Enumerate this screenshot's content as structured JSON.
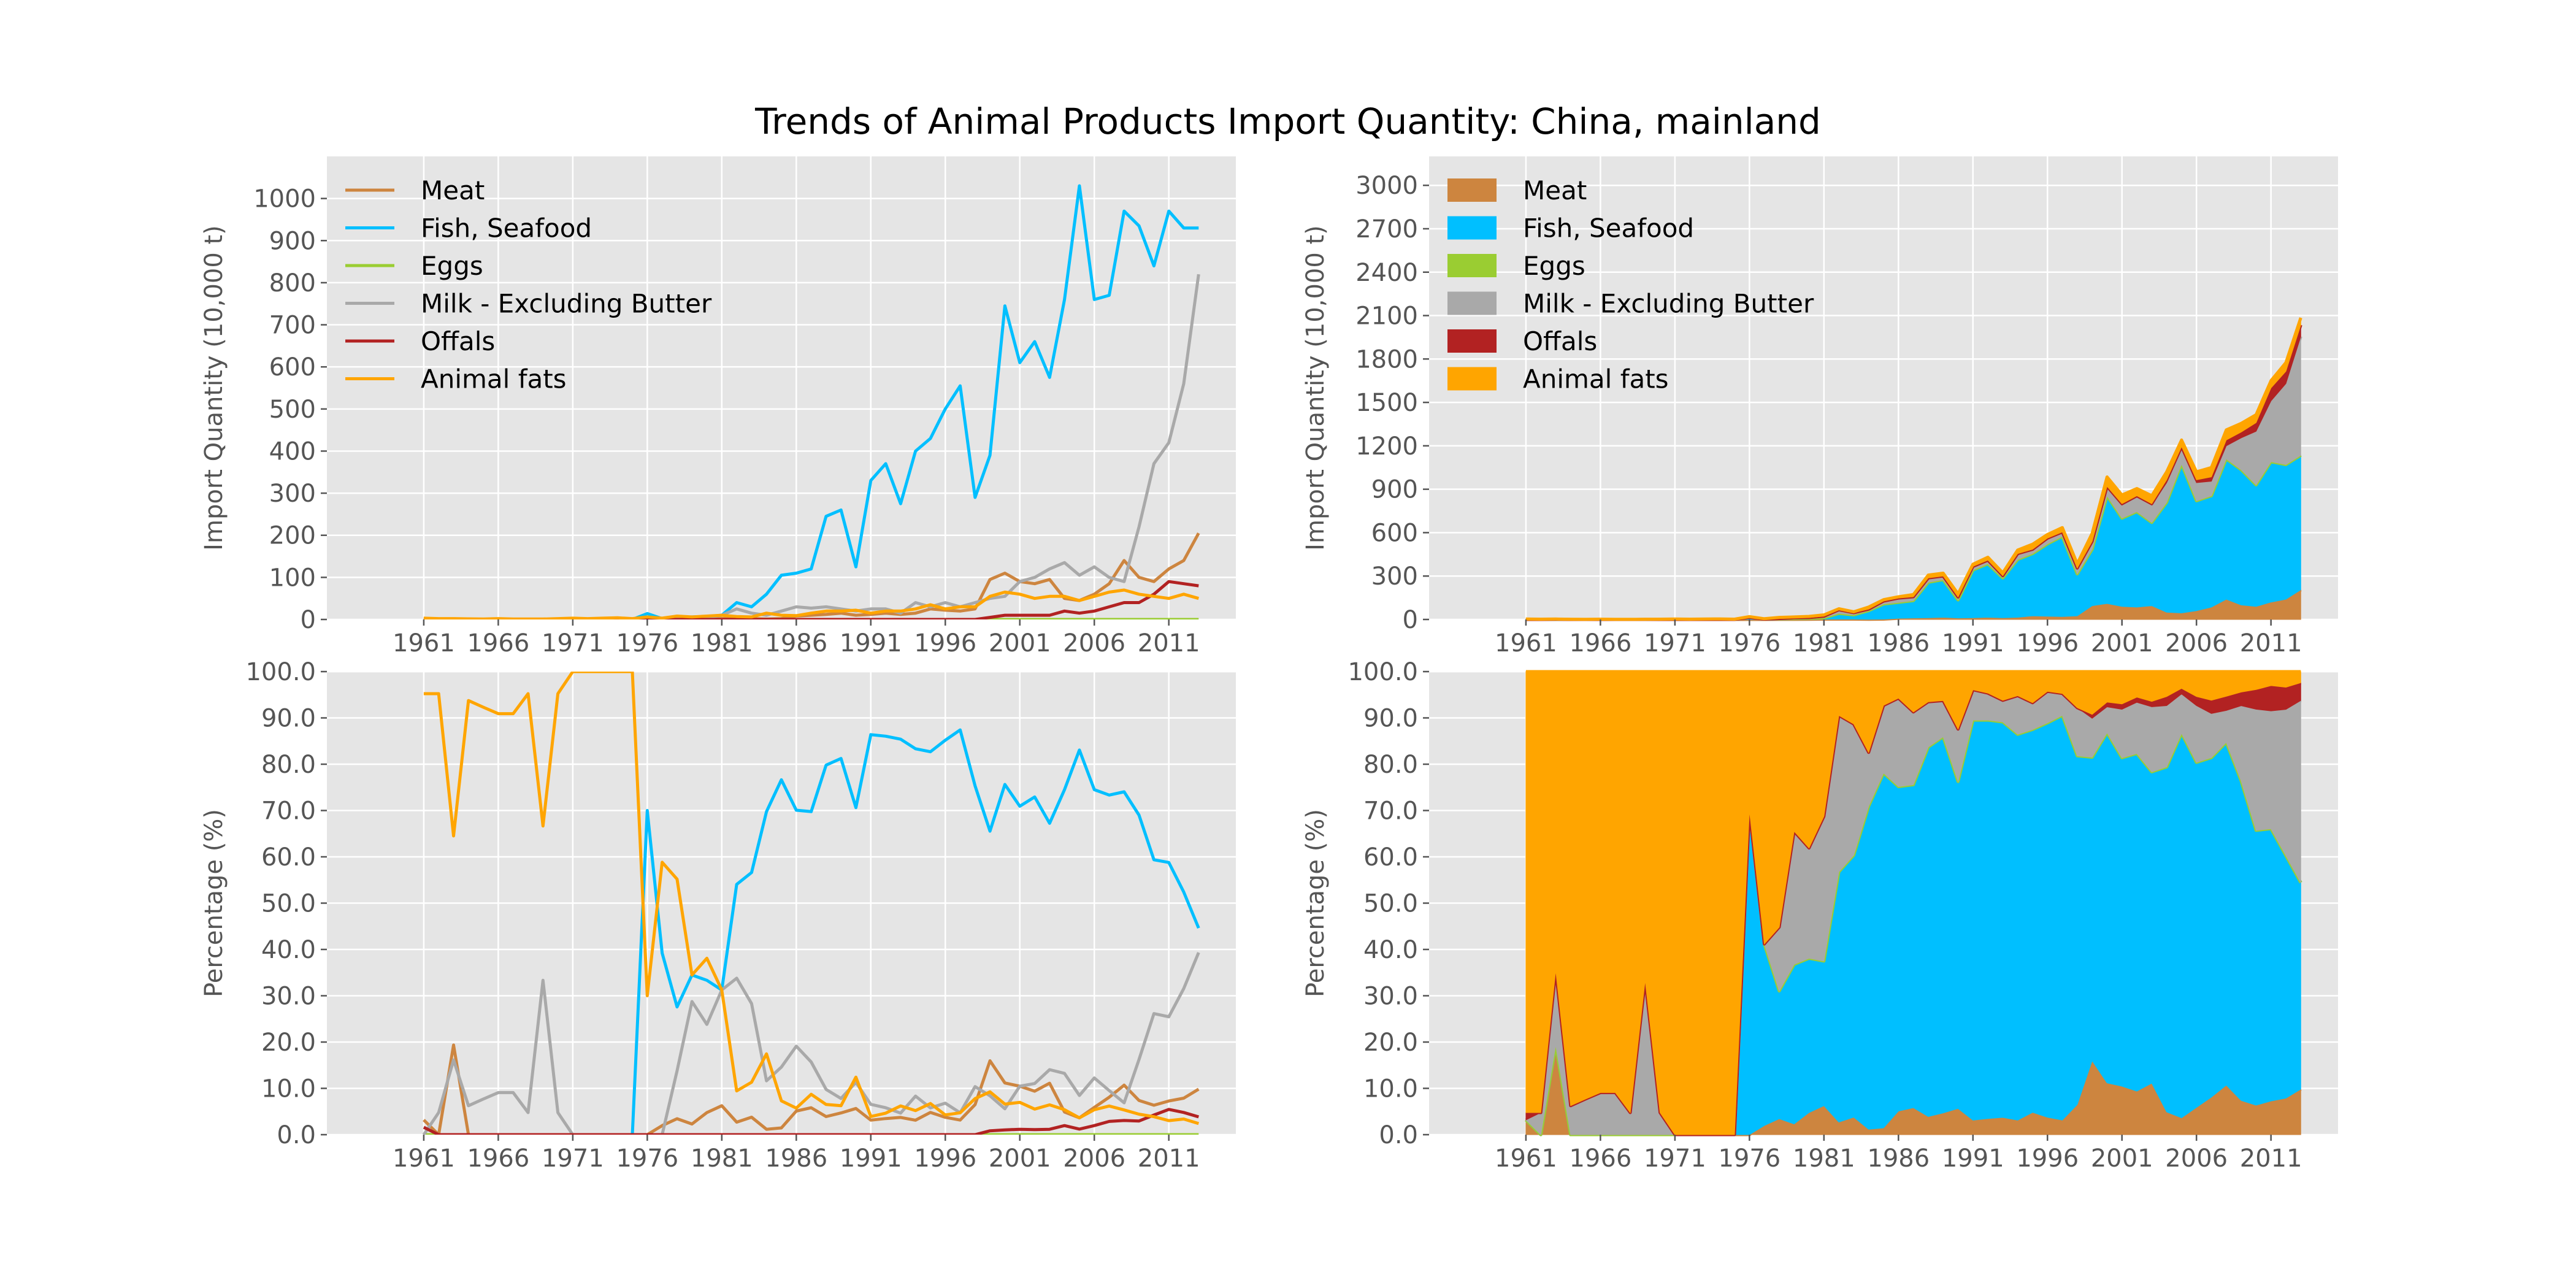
{
  "figure_title": "Trends of Animal Products Import Quantity: China, mainland",
  "chart_data": [
    {
      "id": "abs_line",
      "type": "line",
      "ylabel": "Import Quantity (10,000 t)",
      "ylim": [
        0,
        1100
      ],
      "yticks": [
        0,
        100,
        200,
        300,
        400,
        500,
        600,
        700,
        800,
        900,
        1000
      ],
      "ytick_labels": [
        "0",
        "100",
        "200",
        "300",
        "400",
        "500",
        "600",
        "700",
        "800",
        "900",
        "1000"
      ],
      "legend_loc": "upper-left"
    },
    {
      "id": "abs_stack",
      "type": "area",
      "ylabel": "Import Quantity (10,000 t)",
      "ylim": [
        0,
        3200
      ],
      "yticks": [
        0,
        300,
        600,
        900,
        1200,
        1500,
        1800,
        2100,
        2400,
        2700,
        3000
      ],
      "ytick_labels": [
        "0",
        "300",
        "600",
        "900",
        "1200",
        "1500",
        "1800",
        "2100",
        "2400",
        "2700",
        "3000"
      ],
      "legend_loc": "upper-left"
    },
    {
      "id": "pct_line",
      "type": "line",
      "ylabel": "Percentage (%)",
      "ylim": [
        0,
        100
      ],
      "yticks": [
        0,
        10,
        20,
        30,
        40,
        50,
        60,
        70,
        80,
        90,
        100
      ],
      "ytick_labels": [
        "0.0",
        "10.0",
        "20.0",
        "30.0",
        "40.0",
        "50.0",
        "60.0",
        "70.0",
        "80.0",
        "90.0",
        "100.0"
      ]
    },
    {
      "id": "pct_stack",
      "type": "area",
      "ylabel": "Percentage (%)",
      "ylim": [
        0,
        100
      ],
      "yticks": [
        0,
        10,
        20,
        30,
        40,
        50,
        60,
        70,
        80,
        90,
        100
      ],
      "ytick_labels": [
        "0.0",
        "10.0",
        "20.0",
        "30.0",
        "40.0",
        "50.0",
        "60.0",
        "70.0",
        "80.0",
        "90.0",
        "100.0"
      ]
    }
  ],
  "shared": {
    "x": [
      1961,
      1962,
      1963,
      1964,
      1965,
      1966,
      1967,
      1968,
      1969,
      1970,
      1971,
      1972,
      1973,
      1974,
      1975,
      1976,
      1977,
      1978,
      1979,
      1980,
      1981,
      1982,
      1983,
      1984,
      1985,
      1986,
      1987,
      1988,
      1989,
      1990,
      1991,
      1992,
      1993,
      1994,
      1995,
      1996,
      1997,
      1998,
      1999,
      2000,
      2001,
      2002,
      2003,
      2004,
      2005,
      2006,
      2007,
      2008,
      2009,
      2010,
      2011,
      2012,
      2013
    ],
    "xlim": [
      1954.5,
      2015.5
    ],
    "xticks": [
      1961,
      1966,
      1971,
      1976,
      1981,
      1986,
      1991,
      1996,
      2001,
      2006,
      2011
    ],
    "xtick_labels": [
      "1961",
      "1966",
      "1971",
      "1976",
      "1981",
      "1986",
      "1991",
      "1996",
      "2001",
      "2006",
      "2011"
    ],
    "series": [
      {
        "name": "Meat",
        "color": "#cd853f",
        "values": [
          0.1,
          0,
          0.6,
          0,
          0,
          0,
          0,
          0,
          0,
          0,
          0,
          0,
          0,
          0,
          0,
          0,
          0.1,
          0.5,
          0.4,
          1,
          2,
          2,
          2,
          1,
          2,
          8,
          10,
          12,
          15,
          10,
          12,
          15,
          12,
          15,
          25,
          22,
          20,
          25,
          95,
          110,
          90,
          85,
          95,
          50,
          45,
          60,
          85,
          140,
          100,
          90,
          120,
          140,
          205
        ]
      },
      {
        "name": "Fish, Seafood",
        "color": "#00bfff",
        "values": [
          0,
          0,
          0,
          0,
          0,
          0,
          0,
          0,
          0,
          0,
          0,
          0,
          0,
          0,
          0,
          14,
          2,
          4,
          6,
          7,
          10,
          40,
          30,
          60,
          105,
          110,
          120,
          245,
          260,
          125,
          330,
          370,
          275,
          400,
          430,
          500,
          555,
          290,
          390,
          745,
          610,
          660,
          575,
          760,
          1030,
          760,
          770,
          970,
          935,
          840,
          970,
          930,
          930
        ]
      },
      {
        "name": "Eggs",
        "color": "#9acd32",
        "values": [
          0,
          0,
          0,
          0,
          0,
          0,
          0,
          0,
          0,
          0,
          0,
          0,
          0,
          0,
          0,
          0,
          0,
          0,
          0,
          0,
          0,
          0,
          0,
          0,
          0,
          0,
          0,
          0,
          0,
          0,
          0,
          0,
          0,
          0,
          0,
          0,
          0,
          0,
          0,
          0,
          0,
          0,
          0,
          0,
          0,
          0,
          0,
          0,
          0,
          0,
          0,
          0,
          0
        ]
      },
      {
        "name": "Milk - Excluding Butter",
        "color": "#a9a9a9",
        "values": [
          0,
          0.1,
          0.5,
          0.1,
          0.1,
          0.2,
          0.1,
          0.05,
          0.5,
          0.1,
          0,
          0,
          0,
          0,
          0,
          0,
          0,
          2,
          5,
          5,
          10,
          25,
          15,
          10,
          20,
          30,
          27,
          30,
          25,
          20,
          25,
          25,
          15,
          40,
          30,
          40,
          30,
          40,
          50,
          55,
          90,
          100,
          120,
          135,
          105,
          125,
          100,
          90,
          220,
          370,
          420,
          560,
          820
        ]
      },
      {
        "name": "Offals",
        "color": "#b22222",
        "values": [
          0.05,
          0,
          0,
          0,
          0,
          0,
          0,
          0,
          0,
          0,
          0,
          0,
          0,
          0,
          0,
          0,
          0,
          0,
          0,
          0,
          0,
          0,
          0,
          0,
          0,
          0,
          0,
          0,
          0,
          0,
          0,
          0,
          0,
          0,
          0,
          0,
          0,
          0,
          5,
          10,
          10,
          10,
          10,
          20,
          15,
          20,
          30,
          40,
          40,
          60,
          90,
          85,
          80
        ]
      },
      {
        "name": "Animal fats",
        "color": "#ffa500",
        "values": [
          3,
          2,
          2,
          1.5,
          1.2,
          2,
          1,
          1,
          1,
          2,
          3,
          2,
          3,
          4,
          2,
          6,
          3,
          8,
          6,
          8,
          10,
          7,
          6,
          15,
          10,
          9,
          15,
          20,
          20,
          22,
          15,
          20,
          20,
          25,
          35,
          25,
          30,
          30,
          55,
          65,
          60,
          50,
          55,
          55,
          45,
          55,
          65,
          70,
          60,
          55,
          50,
          60,
          50
        ]
      }
    ]
  }
}
